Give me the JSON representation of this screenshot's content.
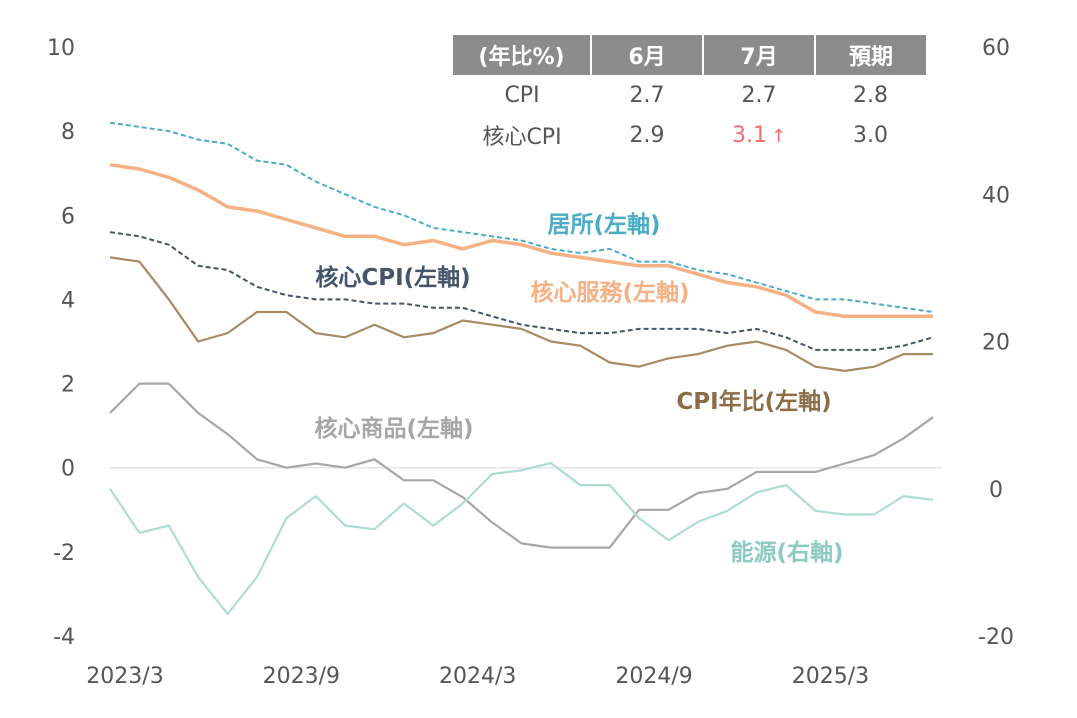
{
  "chart_data": {
    "type": "line",
    "x": [
      "2023/3",
      "2023/4",
      "2023/5",
      "2023/6",
      "2023/7",
      "2023/8",
      "2023/9",
      "2023/10",
      "2023/11",
      "2023/12",
      "2024/1",
      "2024/2",
      "2024/3",
      "2024/4",
      "2024/5",
      "2024/6",
      "2024/7",
      "2024/8",
      "2024/9",
      "2024/10",
      "2024/11",
      "2024/12",
      "2025/1",
      "2025/2",
      "2025/3",
      "2025/4",
      "2025/5",
      "2025/6",
      "2025/7"
    ],
    "x_ticks": [
      "2023/3",
      "2023/9",
      "2024/3",
      "2024/9",
      "2025/3"
    ],
    "y_left": {
      "range": [
        -4,
        10
      ],
      "ticks": [
        "-4",
        "-2",
        "0",
        "2",
        "4",
        "6",
        "8",
        "10"
      ]
    },
    "y_right": {
      "range": [
        -20,
        60
      ],
      "ticks": [
        "-20",
        "0",
        "20",
        "40",
        "60"
      ]
    },
    "series": [
      {
        "name": "居所(左軸)",
        "axis": "left",
        "color": "#4bacc6",
        "style": "dashed",
        "values": [
          8.2,
          8.1,
          8.0,
          7.8,
          7.7,
          7.3,
          7.2,
          6.8,
          6.5,
          6.2,
          6.0,
          5.7,
          5.6,
          5.5,
          5.4,
          5.2,
          5.1,
          5.2,
          4.9,
          4.9,
          4.7,
          4.6,
          4.4,
          4.2,
          4.0,
          4.0,
          3.9,
          3.8,
          3.7
        ]
      },
      {
        "name": "核心服務(左軸)",
        "axis": "left",
        "color": "#f4b183",
        "style": "solid",
        "values": [
          7.2,
          7.1,
          6.9,
          6.6,
          6.2,
          6.1,
          5.9,
          5.7,
          5.5,
          5.5,
          5.3,
          5.4,
          5.2,
          5.4,
          5.3,
          5.1,
          5.0,
          4.9,
          4.8,
          4.8,
          4.6,
          4.4,
          4.3,
          4.1,
          3.7,
          3.6,
          3.6,
          3.6,
          3.6
        ]
      },
      {
        "name": "核心CPI(左軸)",
        "axis": "left",
        "color": "#44546a",
        "style": "dashed",
        "values": [
          5.6,
          5.5,
          5.3,
          4.8,
          4.7,
          4.3,
          4.1,
          4.0,
          4.0,
          3.9,
          3.9,
          3.8,
          3.8,
          3.6,
          3.4,
          3.3,
          3.2,
          3.2,
          3.3,
          3.3,
          3.3,
          3.2,
          3.3,
          3.1,
          2.8,
          2.8,
          2.8,
          2.9,
          3.1
        ]
      },
      {
        "name": "CPI年比(左軸)",
        "axis": "left",
        "color": "#a68b65",
        "style": "solid",
        "values": [
          5.0,
          4.9,
          4.0,
          3.0,
          3.2,
          3.7,
          3.7,
          3.2,
          3.1,
          3.4,
          3.1,
          3.2,
          3.5,
          3.4,
          3.3,
          3.0,
          2.9,
          2.5,
          2.4,
          2.6,
          2.7,
          2.9,
          3.0,
          2.8,
          2.4,
          2.3,
          2.4,
          2.7,
          2.7
        ]
      },
      {
        "name": "核心商品(左軸)",
        "axis": "left",
        "color": "#a6a6a6",
        "style": "solid",
        "values": [
          1.3,
          2.0,
          2.0,
          1.3,
          0.8,
          0.2,
          0.0,
          0.1,
          0.0,
          0.2,
          -0.3,
          -0.3,
          -0.7,
          -1.3,
          -1.8,
          -1.9,
          -1.9,
          -1.9,
          -1.0,
          -1.0,
          -0.6,
          -0.5,
          -0.1,
          -0.1,
          -0.1,
          0.1,
          0.3,
          0.7,
          1.2
        ]
      },
      {
        "name": "能源(右軸)",
        "axis": "right",
        "color": "#aedcd5",
        "style": "solid",
        "values": [
          0.0,
          -6.0,
          -5.0,
          -12.0,
          -17.0,
          -12.0,
          -4.0,
          -1.0,
          -5.0,
          -5.5,
          -2.0,
          -5.0,
          -2.0,
          2.0,
          2.5,
          3.5,
          0.5,
          0.5,
          -4.0,
          -7.0,
          -4.5,
          -3.0,
          -0.5,
          0.5,
          -3.0,
          -3.5,
          -3.5,
          -1.0,
          -1.5
        ]
      }
    ]
  },
  "series_labels": [
    {
      "key": "s0",
      "text": "居所(左軸)",
      "color": "#4bacc6"
    },
    {
      "key": "s1",
      "text": "核心服務(左軸)",
      "color": "#f4b183"
    },
    {
      "key": "s2",
      "text": "核心CPI(左軸)",
      "color": "#44546a"
    },
    {
      "key": "s3",
      "text": "CPI年比(左軸)",
      "color": "#8c6d46"
    },
    {
      "key": "s4",
      "text": "核心商品(左軸)",
      "color": "#a6a6a6"
    },
    {
      "key": "s5",
      "text": "能源(右軸)",
      "color": "#8ccac0"
    }
  ],
  "table": {
    "headers": [
      "(年比%)",
      "6月",
      "7月",
      "預期"
    ],
    "rows": [
      {
        "label": "CPI",
        "jun": "2.7",
        "jul": "2.7",
        "exp": "2.8"
      },
      {
        "label": "核心CPI",
        "jun": "2.9",
        "jul": "3.1",
        "exp": "3.0"
      }
    ],
    "highlight_arrow": "↑"
  }
}
